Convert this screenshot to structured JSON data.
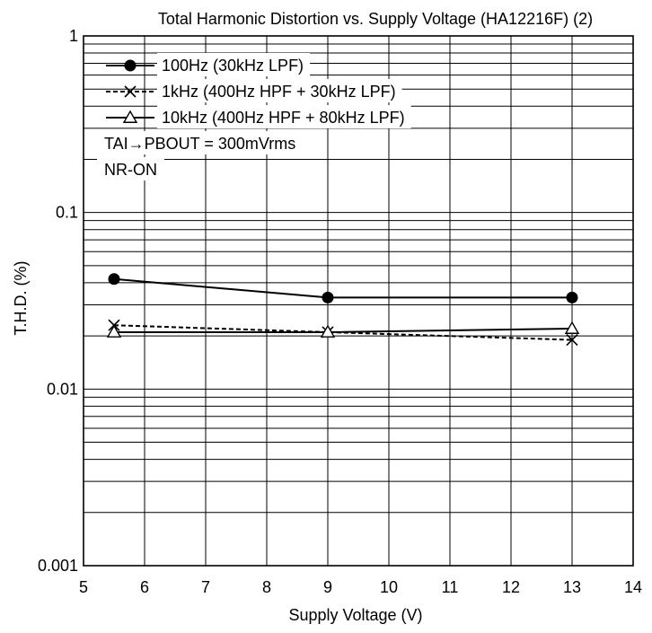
{
  "chart_data": {
    "type": "line",
    "title": "Total Harmonic Distortion vs. Supply Voltage (HA12216F) (2)",
    "xlabel": "Supply Voltage  (V)",
    "ylabel": "T.H.D.  (%)",
    "xlim": [
      5,
      14
    ],
    "ylim": [
      0.001,
      1
    ],
    "yscale": "log",
    "grid": true,
    "x_ticks": [
      "5",
      "6",
      "7",
      "8",
      "9",
      "10",
      "11",
      "12",
      "13",
      "14"
    ],
    "y_ticks": [
      "0.001",
      "0.01",
      "0.1",
      "1"
    ],
    "legend_position": "top-left",
    "series": [
      {
        "name": "100Hz (30kHz LPF)",
        "marker": "filled-circle",
        "line": "solid",
        "x": [
          5.5,
          9,
          13
        ],
        "y": [
          0.042,
          0.033,
          0.033
        ]
      },
      {
        "name": "1kHz (400Hz HPF + 30kHz LPF)",
        "marker": "x",
        "line": "dashed",
        "x": [
          5.5,
          9,
          13
        ],
        "y": [
          0.023,
          0.021,
          0.019
        ]
      },
      {
        "name": "10kHz (400Hz HPF + 80kHz LPF)",
        "marker": "open-triangle",
        "line": "solid",
        "x": [
          5.5,
          9,
          13
        ],
        "y": [
          0.021,
          0.021,
          0.022
        ]
      }
    ],
    "annotations": [
      "TAI→PBOUT = 300mVrms",
      "NR-ON"
    ]
  }
}
